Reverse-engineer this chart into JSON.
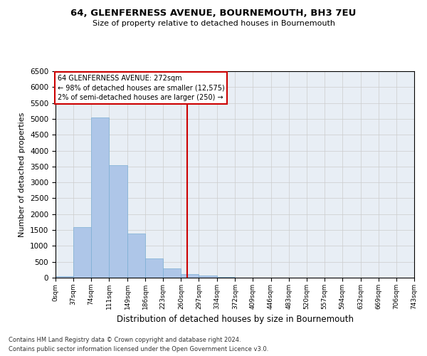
{
  "title": "64, GLENFERNESS AVENUE, BOURNEMOUTH, BH3 7EU",
  "subtitle": "Size of property relative to detached houses in Bournemouth",
  "xlabel": "Distribution of detached houses by size in Bournemouth",
  "ylabel": "Number of detached properties",
  "bin_edges": [
    0,
    37,
    74,
    111,
    149,
    186,
    223,
    260,
    297,
    334,
    372,
    409,
    446,
    483,
    520,
    557,
    594,
    632,
    669,
    706,
    743
  ],
  "bar_heights": [
    50,
    1600,
    5050,
    3550,
    1400,
    600,
    300,
    120,
    75,
    30,
    10,
    5,
    3,
    2,
    1,
    1,
    0,
    0,
    0,
    0
  ],
  "bar_color": "#aec6e8",
  "bar_edge_color": "#7bafd4",
  "vline_x": 272,
  "vline_color": "#cc0000",
  "annotation_title": "64 GLENFERNESS AVENUE: 272sqm",
  "annotation_line1": "← 98% of detached houses are smaller (12,575)",
  "annotation_line2": "2% of semi-detached houses are larger (250) →",
  "annotation_box_color": "#cc0000",
  "annotation_text_color": "#000000",
  "ylim": [
    0,
    6500
  ],
  "yticks": [
    0,
    500,
    1000,
    1500,
    2000,
    2500,
    3000,
    3500,
    4000,
    4500,
    5000,
    5500,
    6000,
    6500
  ],
  "grid_color": "#cccccc",
  "background_color": "#e8eef5",
  "footer_line1": "Contains HM Land Registry data © Crown copyright and database right 2024.",
  "footer_line2": "Contains public sector information licensed under the Open Government Licence v3.0."
}
